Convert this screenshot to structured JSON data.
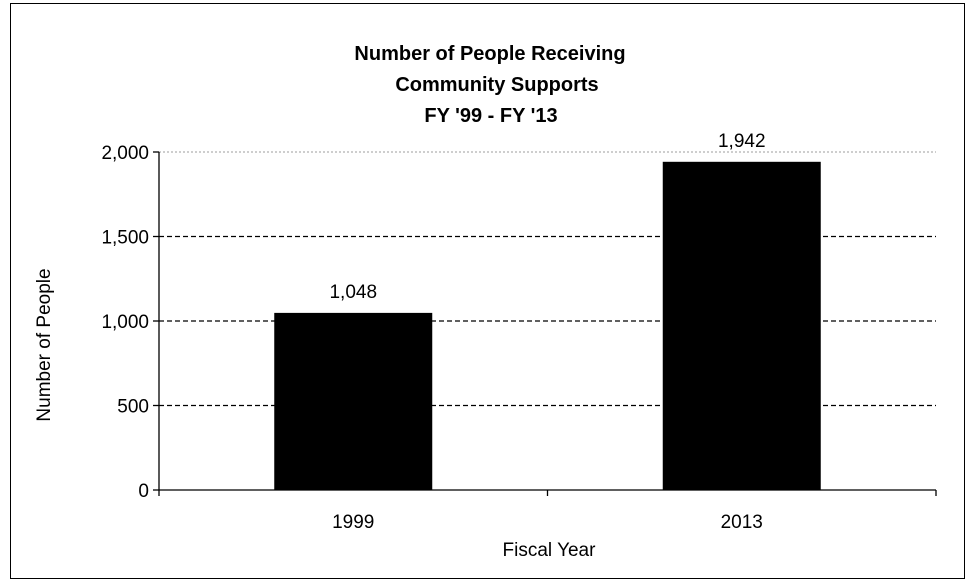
{
  "chart_data": {
    "type": "bar",
    "title_lines": [
      "Number of People Receiving",
      "Community Supports",
      "FY '99 - FY '13"
    ],
    "xlabel": "Fiscal Year",
    "ylabel": "Number of People",
    "categories": [
      "1999",
      "2013"
    ],
    "values": [
      1048,
      1942
    ],
    "data_labels": [
      "1,048",
      "1,942"
    ],
    "ylim": [
      0,
      2000
    ],
    "yticks": [
      0,
      500,
      1000,
      1500,
      2000
    ],
    "ytick_labels": [
      "0",
      "500",
      "1,000",
      "1,500",
      "2,000"
    ],
    "grid": true,
    "legend": "none",
    "bar_color": "#000000",
    "grid_color": "#000000"
  }
}
